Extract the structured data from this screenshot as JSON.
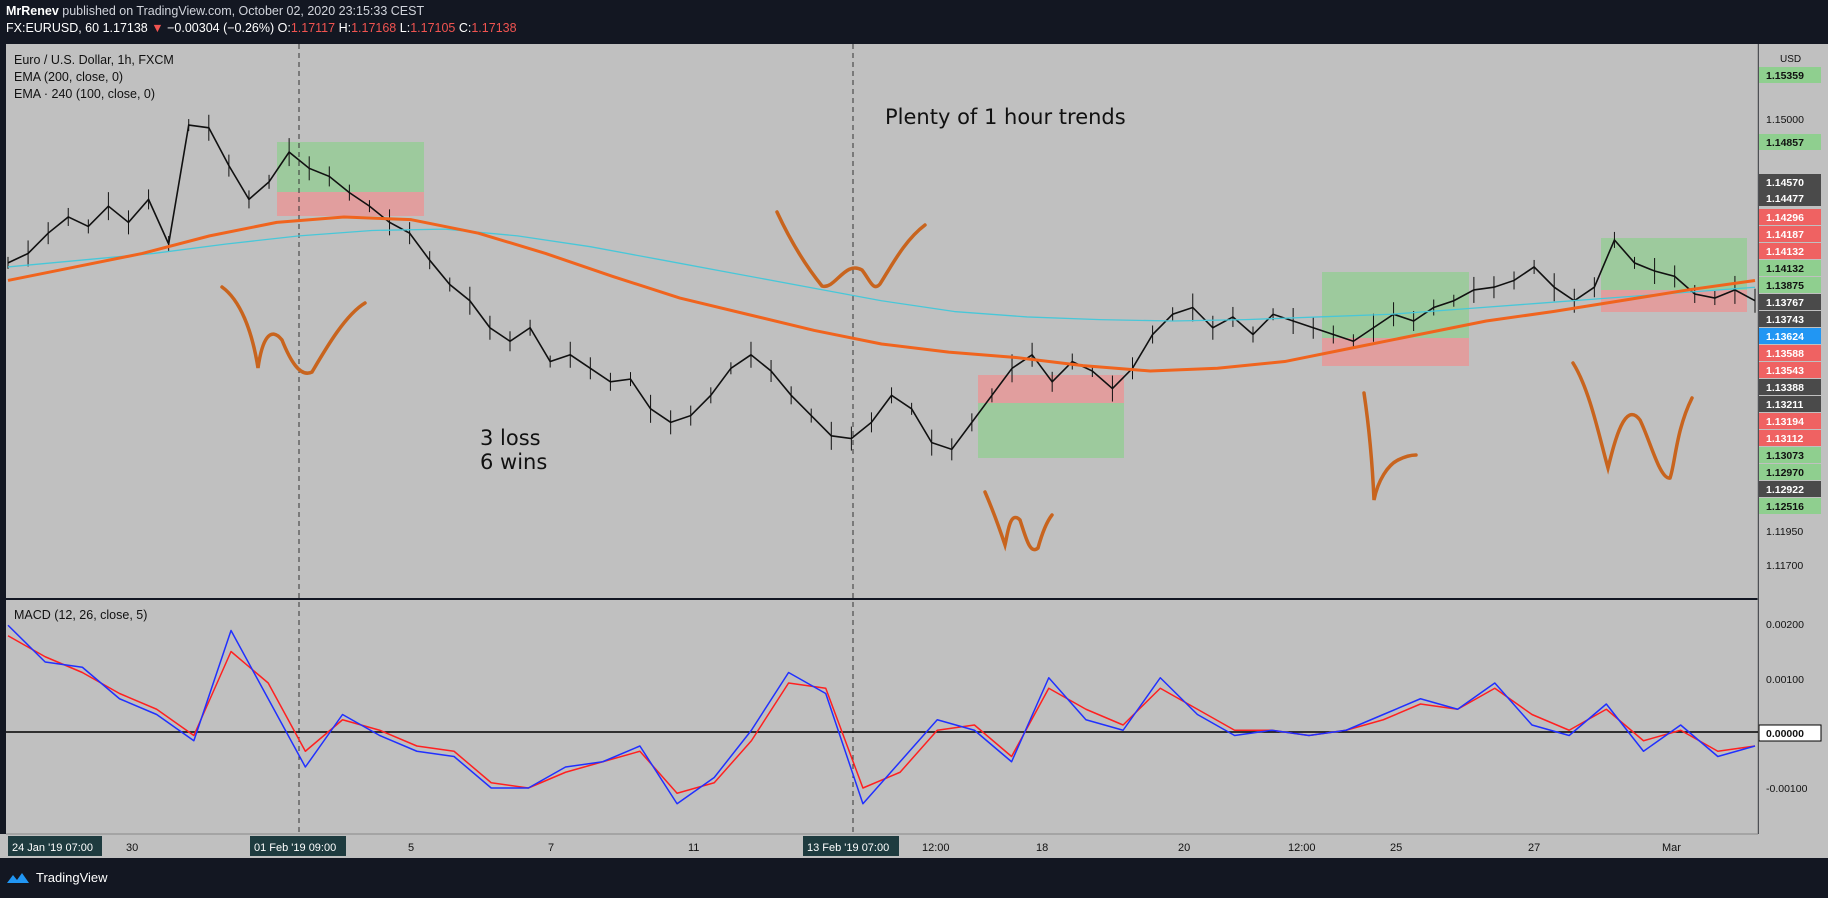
{
  "header": {
    "author": "MrRenev",
    "published_text": "published on TradingView.com, October 02, 2020 23:15:33 CEST",
    "symbol": "FX:EURUSD, 60",
    "last": "1.17138",
    "change": "−0.00304 (−0.26%)",
    "o_label": "O:",
    "o": "1.17117",
    "h_label": "H:",
    "h": "1.17168",
    "l_label": "L:",
    "l": "1.17105",
    "c_label": "C:",
    "c": "1.17138"
  },
  "legend": {
    "title": "Euro / U.S. Dollar, 1h, FXCM",
    "ema1": "EMA (200, close, 0)",
    "ema2": "EMA · 240 (100, close, 0)",
    "macd": "MACD (12, 26, close, 5)",
    "currency": "USD"
  },
  "annotations": {
    "trends": "Plenty of 1 hour trends",
    "loss": "3 loss",
    "wins": "6 wins"
  },
  "colors": {
    "background": "#131722",
    "pane": "#c0c0c0",
    "ema200": "#f0641e",
    "ema240": "#48c7d8",
    "macd": "#2030ff",
    "signal": "#ff2020",
    "win_box": "#8fcf8f",
    "loss_box": "#f09090",
    "hand_drawn": "#c8641e"
  },
  "footer": {
    "brand": "TradingView"
  },
  "chart_data": [
    {
      "type": "line",
      "title": "Euro / U.S. Dollar, 1h, FXCM",
      "ylim": [
        1.115,
        1.156
      ],
      "x_ticks": [
        "24 Jan '19  07:00",
        "30",
        "01 Feb '19  09:00",
        "5",
        "7",
        "11",
        "13 Feb '19  07:00",
        "12:00",
        "18",
        "20",
        "12:00",
        "25",
        "27",
        "Mar"
      ],
      "y_axis_ticks": [
        "1.15000",
        "1.11950",
        "1.11700"
      ],
      "price_labels": [
        {
          "v": "1.15359",
          "c": "#8fcf8f"
        },
        {
          "v": "1.14857",
          "c": "#8fcf8f"
        },
        {
          "v": "1.14570",
          "c": "#4a4a4a"
        },
        {
          "v": "1.14477",
          "c": "#4a4a4a"
        },
        {
          "v": "1.14296",
          "c": "#ef6262"
        },
        {
          "v": "1.14187",
          "c": "#ef6262"
        },
        {
          "v": "1.14132",
          "c": "#ef6262"
        },
        {
          "v": "1.14132",
          "c": "#8fcf8f"
        },
        {
          "v": "1.13875",
          "c": "#8fcf8f"
        },
        {
          "v": "1.13767",
          "c": "#4a4a4a"
        },
        {
          "v": "1.13743",
          "c": "#4a4a4a"
        },
        {
          "v": "1.13624",
          "c": "#2196f3"
        },
        {
          "v": "1.13588",
          "c": "#ef6262"
        },
        {
          "v": "1.13543",
          "c": "#ef6262"
        },
        {
          "v": "1.13388",
          "c": "#4a4a4a"
        },
        {
          "v": "1.13211",
          "c": "#4a4a4a"
        },
        {
          "v": "1.13194",
          "c": "#ef6262"
        },
        {
          "v": "1.13112",
          "c": "#ef6262"
        },
        {
          "v": "1.13073",
          "c": "#8fcf8f"
        },
        {
          "v": "1.12970",
          "c": "#8fcf8f"
        },
        {
          "v": "1.12922",
          "c": "#4a4a4a"
        },
        {
          "v": "1.12516",
          "c": "#8fcf8f"
        }
      ],
      "series": [
        {
          "name": "EURUSD",
          "values": [
            1.1398,
            1.1405,
            1.142,
            1.1432,
            1.1425,
            1.144,
            1.1428,
            1.1445,
            1.1412,
            1.15,
            1.1498,
            1.147,
            1.1445,
            1.1458,
            1.148,
            1.1468,
            1.1462,
            1.145,
            1.144,
            1.1428,
            1.142,
            1.14,
            1.1382,
            1.137,
            1.135,
            1.134,
            1.135,
            1.1325,
            1.133,
            1.132,
            1.131,
            1.1312,
            1.129,
            1.128,
            1.1285,
            1.13,
            1.132,
            1.133,
            1.1318,
            1.13,
            1.1285,
            1.127,
            1.1268,
            1.128,
            1.13,
            1.129,
            1.1265,
            1.126,
            1.128,
            1.13,
            1.132,
            1.133,
            1.131,
            1.1325,
            1.1318,
            1.1305,
            1.132,
            1.1345,
            1.136,
            1.1365,
            1.135,
            1.1358,
            1.1345,
            1.136,
            1.1355,
            1.135,
            1.1345,
            1.134,
            1.135,
            1.136,
            1.1355,
            1.1365,
            1.137,
            1.1378,
            1.138,
            1.1385,
            1.1395,
            1.138,
            1.137,
            1.138,
            1.1415,
            1.1398,
            1.1392,
            1.1388,
            1.1375,
            1.1372,
            1.1378,
            1.137
          ]
        },
        {
          "name": "EMA (200, close, 0)",
          "values": [
            1.1385,
            1.1395,
            1.1405,
            1.1418,
            1.1428,
            1.1432,
            1.143,
            1.142,
            1.1405,
            1.1388,
            1.1372,
            1.136,
            1.1348,
            1.1338,
            1.1332,
            1.1328,
            1.1322,
            1.1318,
            1.132,
            1.1325,
            1.1335,
            1.1345,
            1.1355,
            1.1362,
            1.137,
            1.1378,
            1.1385
          ]
        },
        {
          "name": "EMA · 240 (100, close, 0)",
          "values": [
            1.1395,
            1.14,
            1.1405,
            1.1412,
            1.1418,
            1.1422,
            1.1423,
            1.1418,
            1.141,
            1.14,
            1.139,
            1.138,
            1.137,
            1.1362,
            1.1358,
            1.1356,
            1.1355,
            1.1356,
            1.1358,
            1.136,
            1.1364,
            1.1368,
            1.1372,
            1.1376,
            1.138
          ]
        }
      ]
    },
    {
      "type": "line",
      "title": "MACD (12, 26, close, 5)",
      "ylim": [
        -0.0019,
        0.0021
      ],
      "y_axis_ticks": [
        "0.00200",
        "0.00100",
        "0.00000",
        "-0.00100"
      ],
      "series": [
        {
          "name": "MACD",
          "values": [
            0.002,
            0.0013,
            0.0012,
            0.0006,
            0.0003,
            -0.0002,
            0.0019,
            0.0006,
            -0.0007,
            0.0003,
            -0.0001,
            -0.0004,
            -0.0005,
            -0.0011,
            -0.0011,
            -0.0007,
            -0.0006,
            -0.0003,
            -0.0014,
            -0.0009,
            0.0,
            0.0011,
            0.0007,
            -0.0014,
            -0.0006,
            0.0002,
            0.0,
            -0.0006,
            0.001,
            0.0002,
            0.0,
            0.001,
            0.0003,
            -0.0001,
            0.0,
            -0.0001,
            0.0,
            0.0003,
            0.0006,
            0.0004,
            0.0009,
            0.0001,
            -0.0001,
            0.0005,
            -0.0004,
            0.0001,
            -0.0005,
            -0.0003
          ]
        },
        {
          "name": "Signal",
          "values": [
            0.0018,
            0.0014,
            0.0011,
            0.0007,
            0.0004,
            -0.0001,
            0.0015,
            0.0009,
            -0.0004,
            0.0002,
            0.0,
            -0.0003,
            -0.0004,
            -0.001,
            -0.0011,
            -0.0008,
            -0.0006,
            -0.0004,
            -0.0012,
            -0.001,
            -0.0002,
            0.0009,
            0.0008,
            -0.0011,
            -0.0008,
            0.0,
            0.0001,
            -0.0005,
            0.0008,
            0.0004,
            0.0001,
            0.0008,
            0.0004,
            0.0,
            0.0,
            -0.0001,
            0.0,
            0.0002,
            0.0005,
            0.0004,
            0.0008,
            0.0003,
            0.0,
            0.0004,
            -0.0002,
            0.0,
            -0.0004,
            -0.0003
          ]
        }
      ]
    }
  ]
}
